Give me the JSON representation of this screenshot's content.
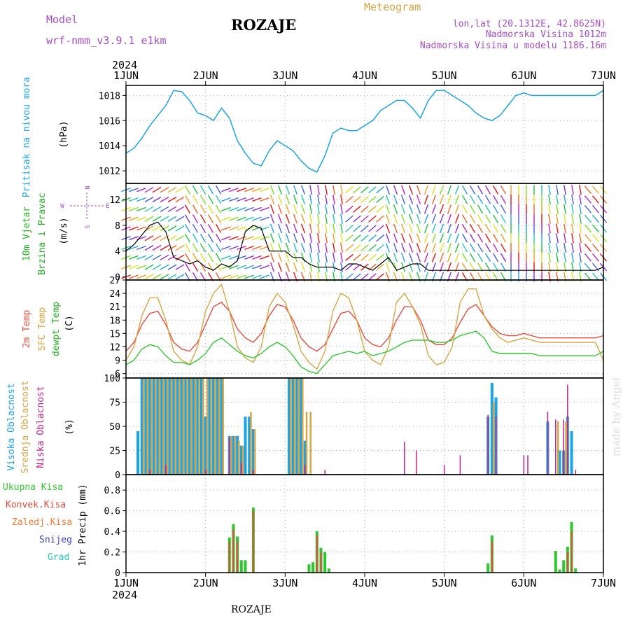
{
  "header": {
    "model_label": "Model",
    "model_name": "wrf-nmm_v3.9.1 e1km",
    "station_title": "ROZAJE",
    "product": "Meteogram",
    "lonlat": "lon,lat (20.1312E, 42.8625N)",
    "elevation": "Nadmorska Visina 1012m",
    "model_elevation": "Nadmorska Visina u modelu 1186.16m"
  },
  "footer": {
    "station": "ROZAJE",
    "watermark": "made by Angel"
  },
  "colors": {
    "pressure": "#1aa3e6",
    "temp2m": "#e84a3c",
    "sfc": "#d9a441",
    "dewpt": "#2ec82e",
    "high_cloud": "#1aa3e6",
    "mid_cloud": "#d9a441",
    "low_cloud": "#c0208a",
    "precip_total": "#2ec82e",
    "precip_conv": "#e84a3c",
    "precip_frozen": "#f07a30",
    "snow": "#4040d0",
    "hail": "#20c8c0",
    "wind_label": "#20b020",
    "model_label": "#a64dc8"
  },
  "chart_data": [
    {
      "type": "line",
      "panel": "pressure",
      "title": "",
      "year_label": "2024",
      "x_ticks": [
        "1JUN",
        "2JUN",
        "3JUN",
        "4JUN",
        "5JUN",
        "6JUN",
        "7JUN"
      ],
      "ylabel": [
        "Pritisak na nivou mora",
        "(hPa)"
      ],
      "yticks": [
        1012,
        1014,
        1016,
        1018
      ],
      "ylim": [
        1011.0,
        1018.8
      ],
      "series": [
        {
          "x": [
            0.0,
            0.1,
            0.2,
            0.3,
            0.4,
            0.5,
            0.6,
            0.7,
            0.8,
            0.9,
            1.0,
            1.1,
            1.2,
            1.3,
            1.4,
            1.5,
            1.6,
            1.7,
            1.8,
            1.9,
            2.0,
            2.1,
            2.2,
            2.3,
            2.4,
            2.5,
            2.6,
            2.7,
            2.8,
            2.9,
            3.0,
            3.1,
            3.2,
            3.3,
            3.4,
            3.5,
            3.6,
            3.7,
            3.8,
            3.9,
            4.0,
            4.1,
            4.2,
            4.3,
            4.4,
            4.5,
            4.6,
            4.7,
            4.8,
            4.9,
            5.0,
            5.1,
            5.2,
            5.3,
            5.4,
            5.5,
            5.6,
            5.7,
            5.8,
            5.9,
            6.0
          ],
          "values": [
            1013.4,
            1013.8,
            1014.6,
            1015.6,
            1016.4,
            1017.2,
            1018.4,
            1018.3,
            1017.6,
            1016.6,
            1016.4,
            1016.0,
            1017.0,
            1016.2,
            1014.4,
            1013.4,
            1012.6,
            1012.4,
            1013.6,
            1014.4,
            1014.0,
            1013.6,
            1012.8,
            1012.2,
            1011.9,
            1013.2,
            1015.0,
            1015.4,
            1015.2,
            1015.2,
            1015.6,
            1016.0,
            1016.8,
            1017.2,
            1017.6,
            1017.6,
            1017.0,
            1016.2,
            1017.6,
            1018.4,
            1018.4,
            1018.0,
            1017.6,
            1017.2,
            1016.6,
            1016.2,
            1016.0,
            1016.4,
            1017.2,
            1018.0,
            1018.2,
            1018.0,
            1018.0,
            1018.0,
            1018.0,
            1018.0,
            1018.0,
            1018.0,
            1018.0,
            1018.0,
            1018.4
          ]
        }
      ]
    },
    {
      "type": "scatter",
      "panel": "wind",
      "title": "",
      "ylabel": [
        "10m Vjetar",
        "Brzina i Pravac",
        "(m/s)"
      ],
      "compass": {
        "n": "N",
        "e": "E",
        "s": "S",
        "w": "W"
      },
      "yticks": [
        0,
        4,
        8,
        12
      ],
      "ylim": [
        -0.5,
        14.5
      ],
      "series": [
        {
          "name": "speed",
          "x": [
            0.0,
            0.1,
            0.2,
            0.3,
            0.4,
            0.5,
            0.6,
            0.7,
            0.8,
            0.9,
            1.0,
            1.1,
            1.2,
            1.3,
            1.4,
            1.5,
            1.6,
            1.7,
            1.8,
            1.9,
            2.0,
            2.1,
            2.2,
            2.3,
            2.4,
            2.5,
            2.6,
            2.7,
            2.8,
            2.9,
            3.0,
            3.1,
            3.2,
            3.3,
            3.4,
            3.5,
            3.6,
            3.7,
            3.8,
            3.9,
            4.0,
            4.1,
            4.2,
            4.3,
            4.4,
            4.5,
            4.6,
            4.7,
            4.8,
            4.9,
            5.0,
            5.1,
            5.2,
            5.3,
            5.4,
            5.5,
            5.6,
            5.7,
            5.8,
            5.9,
            6.0
          ],
          "values": [
            4.0,
            5.0,
            6.5,
            8.0,
            8.5,
            7.0,
            3.0,
            2.5,
            2.0,
            2.5,
            1.5,
            1.0,
            2.0,
            1.5,
            2.5,
            7.0,
            8.0,
            7.5,
            4.0,
            4.0,
            4.0,
            3.0,
            3.0,
            2.0,
            1.5,
            1.5,
            1.5,
            1.0,
            2.0,
            2.0,
            1.5,
            1.0,
            2.0,
            3.0,
            1.0,
            1.5,
            2.0,
            2.0,
            1.0,
            1.0,
            1.0,
            1.0,
            1.0,
            1.0,
            1.0,
            1.0,
            1.0,
            1.0,
            1.0,
            1.0,
            1.0,
            1.0,
            1.0,
            1.0,
            1.0,
            1.0,
            1.0,
            1.0,
            1.0,
            1.0,
            1.5
          ]
        },
        {
          "name": "direction_deg",
          "x": [
            0.0,
            0.5,
            1.0,
            1.5,
            2.0,
            2.5,
            3.0,
            3.5,
            4.0,
            4.5,
            5.0,
            5.5,
            6.0
          ],
          "values": [
            200,
            210,
            120,
            200,
            110,
            100,
            220,
            110,
            250,
            300,
            90,
            100,
            130
          ]
        }
      ]
    },
    {
      "type": "line",
      "panel": "temperature",
      "title": "",
      "ylabel": [
        "2m Temp",
        "SFC Temp",
        "dewpt Temp",
        "(C)"
      ],
      "yticks": [
        6,
        9,
        12,
        15,
        18,
        21,
        24,
        27
      ],
      "ylim": [
        5,
        27
      ],
      "x": [
        0.0,
        0.1,
        0.2,
        0.3,
        0.4,
        0.5,
        0.6,
        0.7,
        0.8,
        0.9,
        1.0,
        1.1,
        1.2,
        1.3,
        1.4,
        1.5,
        1.6,
        1.7,
        1.8,
        1.9,
        2.0,
        2.1,
        2.2,
        2.3,
        2.4,
        2.5,
        2.6,
        2.7,
        2.8,
        2.9,
        3.0,
        3.1,
        3.2,
        3.3,
        3.4,
        3.5,
        3.6,
        3.7,
        3.8,
        3.9,
        4.0,
        4.1,
        4.2,
        4.3,
        4.4,
        4.5,
        4.6,
        4.7,
        4.8,
        4.9,
        5.0,
        5.1,
        5.2,
        5.3,
        5.4,
        5.5,
        5.6,
        5.7,
        5.8,
        5.9,
        6.0
      ],
      "series": [
        {
          "name": "2m Temp",
          "values": [
            11.0,
            13.0,
            17.0,
            19.5,
            20.0,
            17.0,
            13.0,
            11.5,
            11.0,
            13.0,
            17.0,
            21.0,
            22.0,
            20.0,
            16.0,
            14.0,
            13.0,
            15.0,
            19.0,
            21.5,
            21.0,
            18.0,
            14.0,
            12.0,
            11.0,
            12.5,
            16.0,
            19.5,
            20.0,
            18.0,
            14.0,
            12.5,
            12.0,
            14.0,
            18.0,
            21.0,
            21.0,
            18.0,
            13.5,
            12.5,
            12.5,
            14.0,
            17.5,
            20.5,
            21.5,
            19.0,
            16.5,
            15.0,
            14.5,
            14.5,
            15.0,
            14.5,
            14.0,
            14.0,
            14.0,
            14.0,
            14.0,
            14.0,
            14.0,
            14.0,
            14.5
          ]
        },
        {
          "name": "SFC Temp",
          "values": [
            9.0,
            12.0,
            19.0,
            23.0,
            23.0,
            18.0,
            11.0,
            9.0,
            8.0,
            12.0,
            20.0,
            24.0,
            26.0,
            20.0,
            12.0,
            9.5,
            8.5,
            12.0,
            21.0,
            24.0,
            22.0,
            17.0,
            11.0,
            8.5,
            7.0,
            11.0,
            20.0,
            24.0,
            23.0,
            18.0,
            11.0,
            9.0,
            8.0,
            12.0,
            22.0,
            24.0,
            21.0,
            17.0,
            10.0,
            8.0,
            8.5,
            12.0,
            22.0,
            25.0,
            25.0,
            19.0,
            16.0,
            14.0,
            13.0,
            13.5,
            14.0,
            13.5,
            13.0,
            13.0,
            13.0,
            13.0,
            13.0,
            13.0,
            13.0,
            13.0,
            9.0
          ]
        },
        {
          "name": "dewpt Temp",
          "values": [
            8.0,
            9.0,
            11.5,
            12.5,
            12.0,
            10.0,
            8.5,
            8.5,
            8.0,
            9.0,
            10.5,
            13.0,
            14.0,
            12.5,
            11.0,
            10.0,
            9.5,
            10.5,
            12.0,
            13.0,
            12.0,
            10.0,
            7.5,
            6.5,
            6.0,
            8.0,
            10.0,
            10.5,
            11.0,
            10.5,
            11.0,
            10.0,
            10.5,
            11.0,
            12.0,
            13.0,
            13.5,
            13.5,
            13.5,
            13.0,
            13.0,
            13.5,
            14.5,
            15.0,
            15.5,
            14.0,
            11.0,
            10.5,
            10.5,
            10.5,
            10.5,
            10.5,
            10.0,
            10.0,
            10.0,
            10.0,
            10.0,
            10.0,
            10.0,
            10.0,
            11.0
          ]
        }
      ]
    },
    {
      "type": "bar",
      "panel": "cloud",
      "title": "",
      "ylabel": [
        "Visoka Oblacnost",
        "Srednja Oblacnost",
        "Niska Oblacnost",
        "(%)"
      ],
      "yticks": [
        0,
        25,
        50,
        75,
        100
      ],
      "ylim": [
        0,
        100
      ],
      "series": [
        {
          "name": "Visoka Oblacnost",
          "x": [
            0.15,
            0.2,
            0.25,
            0.3,
            0.35,
            0.4,
            0.45,
            0.5,
            0.55,
            0.6,
            0.65,
            0.7,
            0.75,
            0.8,
            0.85,
            0.9,
            0.95,
            1.0,
            1.05,
            1.1,
            1.15,
            1.2,
            1.3,
            1.35,
            1.4,
            1.45,
            1.5,
            1.55,
            1.6,
            2.05,
            2.1,
            2.15,
            2.2,
            2.25,
            4.55,
            4.6,
            4.65,
            5.3,
            5.45,
            5.5,
            5.55,
            5.6
          ],
          "values": [
            45,
            100,
            100,
            100,
            100,
            100,
            100,
            100,
            100,
            100,
            100,
            100,
            100,
            100,
            100,
            100,
            100,
            60,
            100,
            100,
            100,
            100,
            40,
            40,
            40,
            30,
            60,
            60,
            47,
            100,
            100,
            100,
            100,
            35,
            60,
            95,
            80,
            55,
            25,
            25,
            60,
            45
          ]
        },
        {
          "name": "Srednja Oblacnost",
          "x": [
            0.22,
            0.27,
            0.32,
            0.37,
            0.42,
            0.47,
            0.52,
            0.57,
            0.62,
            0.67,
            0.72,
            0.77,
            0.82,
            0.87,
            0.92,
            0.97,
            1.02,
            1.07,
            1.12,
            1.17,
            1.22,
            1.32,
            1.37,
            1.42,
            1.47,
            1.57,
            1.62,
            2.07,
            2.12,
            2.17,
            2.22,
            2.27,
            2.32,
            4.62,
            5.43,
            5.53
          ],
          "values": [
            100,
            100,
            100,
            100,
            100,
            100,
            100,
            100,
            100,
            100,
            100,
            100,
            100,
            100,
            100,
            100,
            100,
            100,
            100,
            100,
            100,
            40,
            40,
            35,
            30,
            65,
            47,
            100,
            100,
            100,
            100,
            65,
            65,
            75,
            55,
            55
          ]
        },
        {
          "name": "Niska Oblacnost",
          "x": [
            0.3,
            0.5,
            1.0,
            1.3,
            1.45,
            1.6,
            2.25,
            2.5,
            3.5,
            3.65,
            4.0,
            4.2,
            4.55,
            4.65,
            5.0,
            5.05,
            5.3,
            5.4,
            5.5,
            5.55,
            5.65
          ],
          "values": [
            5,
            10,
            5,
            38,
            12,
            5,
            10,
            5,
            34,
            25,
            10,
            20,
            62,
            60,
            20,
            20,
            65,
            57,
            57,
            93,
            5
          ]
        }
      ]
    },
    {
      "type": "bar",
      "panel": "precip",
      "title": "",
      "ylabel": [
        "Ukupna Kisa",
        "Konvek.Kisa",
        "Zaledj.Kisa",
        "Snijeg",
        "Grad",
        "1hr Precip (mm)"
      ],
      "yticks": [
        0,
        0.2,
        0.4,
        0.6,
        0.8
      ],
      "ylim": [
        0,
        0.95
      ],
      "x_ticks": [
        "1JUN",
        "2JUN",
        "3JUN",
        "4JUN",
        "5JUN",
        "6JUN",
        "7JUN"
      ],
      "year_label": "2024",
      "series": [
        {
          "name": "Ukupna Kisa",
          "x": [
            1.3,
            1.35,
            1.4,
            1.45,
            1.5,
            1.6,
            2.3,
            2.35,
            2.4,
            2.45,
            2.5,
            2.55,
            4.55,
            4.6,
            5.4,
            5.45,
            5.5,
            5.55,
            5.6,
            5.65
          ],
          "values": [
            0.34,
            0.47,
            0.35,
            0.12,
            0.12,
            0.63,
            0.08,
            0.1,
            0.4,
            0.24,
            0.2,
            0.04,
            0.09,
            0.36,
            0.21,
            0.03,
            0.12,
            0.25,
            0.49,
            0.04
          ]
        },
        {
          "name": "Konvek.Kisa",
          "x": [
            1.3,
            1.35,
            1.4,
            1.6,
            2.4,
            2.45,
            4.6,
            5.55,
            5.6
          ],
          "values": [
            0.3,
            0.42,
            0.3,
            0.6,
            0.36,
            0.2,
            0.3,
            0.2,
            0.4
          ]
        }
      ]
    }
  ]
}
